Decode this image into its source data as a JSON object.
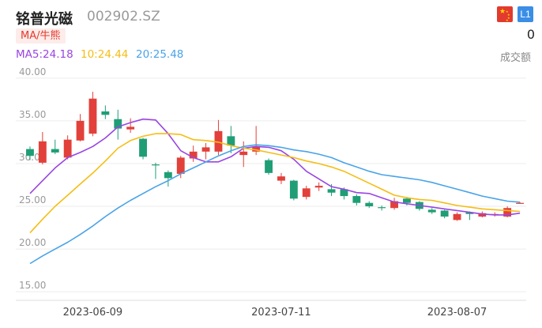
{
  "header": {
    "stock_name": "铭普光磁",
    "stock_code": "002902.SZ",
    "flag_icon": "china-flag-icon",
    "level_badge": "L1",
    "indicator_toggle": "MA/牛熊",
    "volume_value": "0",
    "volume_label": "成交额"
  },
  "ma_legend": {
    "ma5": "MA5:24.18",
    "ma10": "10:24.44",
    "ma20": "20:25.48"
  },
  "colors": {
    "up": "#e2403a",
    "down": "#1f9e76",
    "ma5": "#9945e3",
    "ma10": "#f5bd14",
    "ma20": "#4aa3e8",
    "grid": "#ececec",
    "axis_text": "#9a9a9a"
  },
  "chart_data": {
    "type": "candlestick",
    "ylim": [
      14,
      41
    ],
    "y_ticks": [
      "40.00",
      "35.00",
      "30.00",
      "25.00",
      "20.00",
      "15.00"
    ],
    "x_labels": [
      "2023-06-09",
      "2023-07-11",
      "2023-08-07"
    ],
    "x_label_index": [
      5,
      20,
      34
    ],
    "candles": [
      {
        "o": 31.7,
        "c": 30.9,
        "h": 32.0,
        "l": 30.4
      },
      {
        "o": 30.1,
        "c": 32.6,
        "h": 33.7,
        "l": 29.9
      },
      {
        "o": 31.7,
        "c": 31.3,
        "h": 32.8,
        "l": 31.1
      },
      {
        "o": 30.7,
        "c": 32.8,
        "h": 33.3,
        "l": 30.5
      },
      {
        "o": 32.7,
        "c": 35.0,
        "h": 35.8,
        "l": 32.6
      },
      {
        "o": 33.5,
        "c": 37.6,
        "h": 38.4,
        "l": 33.2
      },
      {
        "o": 36.1,
        "c": 35.7,
        "h": 36.8,
        "l": 35.2
      },
      {
        "o": 35.2,
        "c": 34.1,
        "h": 36.3,
        "l": 32.8
      },
      {
        "o": 34.0,
        "c": 34.3,
        "h": 35.3,
        "l": 33.6
      },
      {
        "o": 32.9,
        "c": 30.8,
        "h": 33.0,
        "l": 30.5
      },
      {
        "o": 29.9,
        "c": 29.8,
        "h": 30.1,
        "l": 28.2
      },
      {
        "o": 29.0,
        "c": 28.3,
        "h": 29.2,
        "l": 27.3
      },
      {
        "o": 28.8,
        "c": 30.7,
        "h": 30.9,
        "l": 28.3
      },
      {
        "o": 30.6,
        "c": 31.4,
        "h": 32.1,
        "l": 30.2
      },
      {
        "o": 31.4,
        "c": 31.9,
        "h": 32.4,
        "l": 30.5
      },
      {
        "o": 31.4,
        "c": 33.8,
        "h": 35.1,
        "l": 31.0
      },
      {
        "o": 33.2,
        "c": 32.1,
        "h": 34.4,
        "l": 31.2
      },
      {
        "o": 31.0,
        "c": 31.4,
        "h": 32.6,
        "l": 29.6
      },
      {
        "o": 31.4,
        "c": 32.0,
        "h": 34.4,
        "l": 31.0
      },
      {
        "o": 30.4,
        "c": 28.9,
        "h": 30.6,
        "l": 28.7
      },
      {
        "o": 28.0,
        "c": 28.5,
        "h": 28.9,
        "l": 27.6
      },
      {
        "o": 28.0,
        "c": 25.9,
        "h": 28.1,
        "l": 25.7
      },
      {
        "o": 26.1,
        "c": 27.1,
        "h": 27.4,
        "l": 25.8
      },
      {
        "o": 27.2,
        "c": 27.4,
        "h": 27.8,
        "l": 26.8
      },
      {
        "o": 27.0,
        "c": 26.6,
        "h": 27.6,
        "l": 26.2
      },
      {
        "o": 27.0,
        "c": 26.2,
        "h": 27.2,
        "l": 25.8
      },
      {
        "o": 26.2,
        "c": 25.4,
        "h": 26.4,
        "l": 25.1
      },
      {
        "o": 25.4,
        "c": 25.0,
        "h": 25.6,
        "l": 24.8
      },
      {
        "o": 24.9,
        "c": 24.8,
        "h": 25.1,
        "l": 24.5
      },
      {
        "o": 24.8,
        "c": 25.6,
        "h": 26.0,
        "l": 24.6
      },
      {
        "o": 25.9,
        "c": 25.4,
        "h": 26.1,
        "l": 25.1
      },
      {
        "o": 25.5,
        "c": 24.7,
        "h": 25.6,
        "l": 24.5
      },
      {
        "o": 24.6,
        "c": 24.3,
        "h": 24.8,
        "l": 24.1
      },
      {
        "o": 24.5,
        "c": 23.8,
        "h": 24.6,
        "l": 23.6
      },
      {
        "o": 23.4,
        "c": 24.1,
        "h": 24.3,
        "l": 23.3
      },
      {
        "o": 24.3,
        "c": 24.1,
        "h": 24.4,
        "l": 23.4
      },
      {
        "o": 23.8,
        "c": 24.2,
        "h": 24.4,
        "l": 23.7
      },
      {
        "o": 24.0,
        "c": 24.1,
        "h": 24.3,
        "l": 23.8
      },
      {
        "o": 23.8,
        "c": 24.8,
        "h": 25.0,
        "l": 23.7
      },
      {
        "o": 25.4,
        "c": 25.4,
        "h": 25.5,
        "l": 25.3
      }
    ],
    "series": [
      {
        "name": "MA5",
        "values": [
          26.5,
          28.0,
          29.5,
          30.7,
          31.3,
          32.0,
          33.0,
          34.3,
          34.8,
          35.2,
          35.1,
          33.5,
          31.5,
          30.7,
          30.2,
          30.2,
          30.8,
          31.8,
          32.0,
          31.9,
          31.5,
          30.5,
          29.1,
          28.2,
          27.3,
          27.0,
          26.6,
          26.5,
          26.0,
          25.5,
          25.3,
          25.1,
          24.9,
          24.7,
          24.5,
          24.3,
          24.1,
          24.0,
          24.0,
          24.2
        ]
      },
      {
        "name": "MA10",
        "values": [
          21.9,
          23.5,
          25.0,
          26.3,
          27.6,
          28.9,
          30.3,
          31.8,
          32.7,
          33.2,
          33.5,
          33.5,
          33.4,
          32.8,
          32.7,
          32.5,
          32.1,
          31.8,
          31.6,
          31.3,
          31.0,
          30.7,
          30.3,
          30.0,
          29.6,
          29.1,
          28.4,
          27.7,
          27.0,
          26.3,
          26.0,
          25.8,
          25.7,
          25.4,
          25.1,
          24.9,
          24.7,
          24.6,
          24.5,
          24.4
        ]
      },
      {
        "name": "MA20",
        "values": [
          18.3,
          19.2,
          20.0,
          20.8,
          21.7,
          22.7,
          23.8,
          24.8,
          25.7,
          26.5,
          27.3,
          28.0,
          28.8,
          29.5,
          30.2,
          30.9,
          31.5,
          32.0,
          32.2,
          32.1,
          31.9,
          31.6,
          31.4,
          31.1,
          30.7,
          30.1,
          29.6,
          29.1,
          28.7,
          28.5,
          28.3,
          28.1,
          27.8,
          27.4,
          27.0,
          26.6,
          26.2,
          25.9,
          25.6,
          25.48
        ]
      }
    ]
  }
}
